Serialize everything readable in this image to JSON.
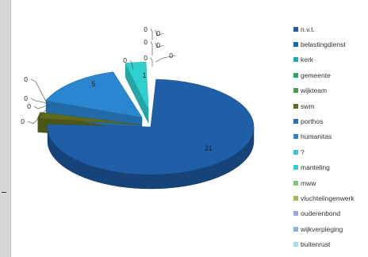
{
  "chart_data": {
    "type": "pie",
    "style": "3d-exploded",
    "categories": [
      "n.v.t.",
      "belastingdienst",
      "kerk",
      "gemeente",
      "wijkteam",
      "swm",
      "porthos",
      "humanitas",
      "?",
      "manteling",
      "mww",
      "vluchtelingenwerk",
      "ouderenbond",
      "wijkverpleging",
      "buitenrust"
    ],
    "values": [
      21,
      0,
      0,
      0,
      0,
      1,
      0,
      5,
      0,
      1,
      0,
      0,
      0,
      0,
      0
    ],
    "colors": [
      "#1f5fa8",
      "#1f68b0",
      "#1ea8b8",
      "#2aa86a",
      "#4f9a4f",
      "#5f6b1c",
      "#2a6fb8",
      "#2a86d0",
      "#35c8d8",
      "#2ed0d0",
      "#7dc87d",
      "#a8b84f",
      "#9aa8d0",
      "#8fb0d8",
      "#a8dcea"
    ],
    "data_labels": [
      "21",
      "0",
      "0",
      "0",
      "0",
      "",
      "0",
      "5",
      "0",
      "1",
      "0",
      "0",
      "0",
      "0",
      "0"
    ],
    "legend_position": "right"
  }
}
